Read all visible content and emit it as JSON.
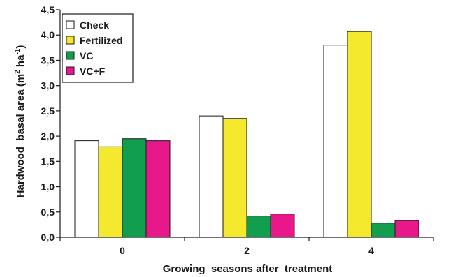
{
  "chart_data": {
    "type": "bar",
    "xlabel": "Growing  seasons after  treatment",
    "ylabel": "Hardwood  basal area (m",
    "ylabel_sup1": "2",
    "ylabel_mid": " ha",
    "ylabel_sup2": "-1",
    "ylabel_end": ")",
    "categories": [
      "0",
      "2",
      "4"
    ],
    "ylim": [
      0,
      4.5
    ],
    "yticks": [
      "0,0",
      "0,5",
      "1,0",
      "1,5",
      "2,0",
      "2,5",
      "3,0",
      "3,5",
      "4,0",
      "4,5"
    ],
    "grid": false,
    "legend_position": "top-left",
    "series": [
      {
        "name": "Check",
        "color": "#ffffff",
        "values": [
          1.91,
          2.4,
          3.8
        ]
      },
      {
        "name": "Fertilized",
        "color": "#f5e92e",
        "values": [
          1.79,
          2.35,
          4.07
        ]
      },
      {
        "name": "VC",
        "color": "#119e4e",
        "values": [
          1.95,
          0.42,
          0.28
        ]
      },
      {
        "name": "VC+F",
        "color": "#e8188b",
        "values": [
          1.91,
          0.46,
          0.33
        ]
      }
    ]
  }
}
